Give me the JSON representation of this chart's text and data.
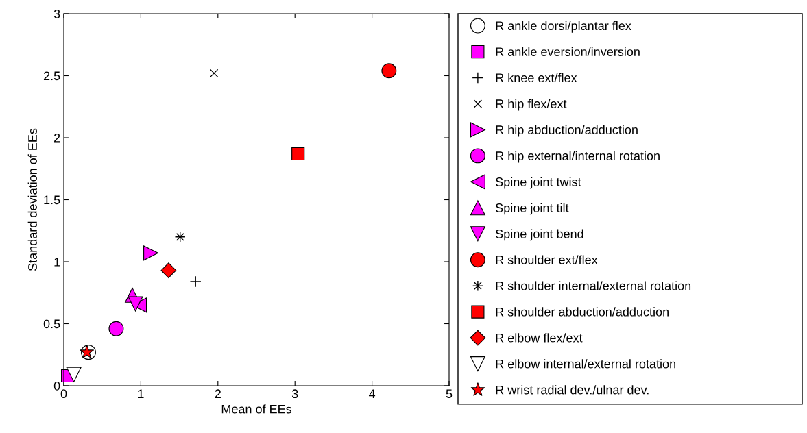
{
  "chart_data": {
    "type": "scatter",
    "xlabel": "Mean of EEs",
    "ylabel": "Standard deviation of EEs",
    "xlim": [
      0,
      5
    ],
    "ylim": [
      0,
      3
    ],
    "xticks": [
      0,
      1,
      2,
      3,
      4,
      5
    ],
    "yticks": [
      0,
      0.5,
      1,
      1.5,
      2,
      2.5,
      3
    ],
    "grid": false,
    "legend": "right",
    "series": [
      {
        "name": "R ankle dorsi/plantar flex",
        "marker": "circle",
        "color": "#ffffff",
        "x": [
          0.32
        ],
        "values": [
          0.27
        ]
      },
      {
        "name": "R ankle eversion/inversion",
        "marker": "square",
        "color": "#ff00ff",
        "x": [
          0.05
        ],
        "values": [
          0.08
        ]
      },
      {
        "name": "R knee ext/flex",
        "marker": "cross",
        "color": "#000000",
        "x": [
          1.71
        ],
        "values": [
          0.84
        ]
      },
      {
        "name": "R hip flex/ext",
        "marker": "cross",
        "color": "#000000",
        "x": [
          1.95
        ],
        "values": [
          2.52
        ]
      },
      {
        "name": "R hip abduction/adduction",
        "marker": "triangle",
        "color": "#ff00ff",
        "x": [
          1.13
        ],
        "values": [
          1.07
        ]
      },
      {
        "name": "R hip external/internal rotation",
        "marker": "circle",
        "color": "#ff00ff",
        "x": [
          0.68
        ],
        "values": [
          0.46
        ]
      },
      {
        "name": "Spine joint twist",
        "marker": "triangle",
        "color": "#ff00ff",
        "x": [
          0.98
        ],
        "values": [
          0.65
        ]
      },
      {
        "name": "Spine joint tilt",
        "marker": "triangle",
        "color": "#ff00ff",
        "x": [
          0.89
        ],
        "values": [
          0.73
        ]
      },
      {
        "name": "Spine joint bend",
        "marker": "triangle",
        "color": "#ff00ff",
        "x": [
          0.93
        ],
        "values": [
          0.66
        ]
      },
      {
        "name": "R shoulder ext/flex",
        "marker": "circle",
        "color": "#ff0000",
        "x": [
          4.22
        ],
        "values": [
          2.54
        ]
      },
      {
        "name": "R shoulder internal/external rotation",
        "marker": "cross",
        "color": "#000000",
        "x": [
          1.51
        ],
        "values": [
          1.2
        ]
      },
      {
        "name": "R shoulder abduction/adduction",
        "marker": "square",
        "color": "#ff0000",
        "x": [
          3.04
        ],
        "values": [
          1.87
        ]
      },
      {
        "name": "R elbow flex/ext",
        "marker": "diamond",
        "color": "#ff0000",
        "x": [
          1.36
        ],
        "values": [
          0.93
        ]
      },
      {
        "name": "R elbow internal/external rotation",
        "marker": "triangle",
        "color": "#ffffff",
        "x": [
          0.13
        ],
        "values": [
          0.09
        ]
      },
      {
        "name": "R wrist radial dev./ulnar dev.",
        "marker": "star",
        "color": "#ff0000",
        "x": [
          0.3
        ],
        "values": [
          0.27
        ]
      }
    ]
  }
}
